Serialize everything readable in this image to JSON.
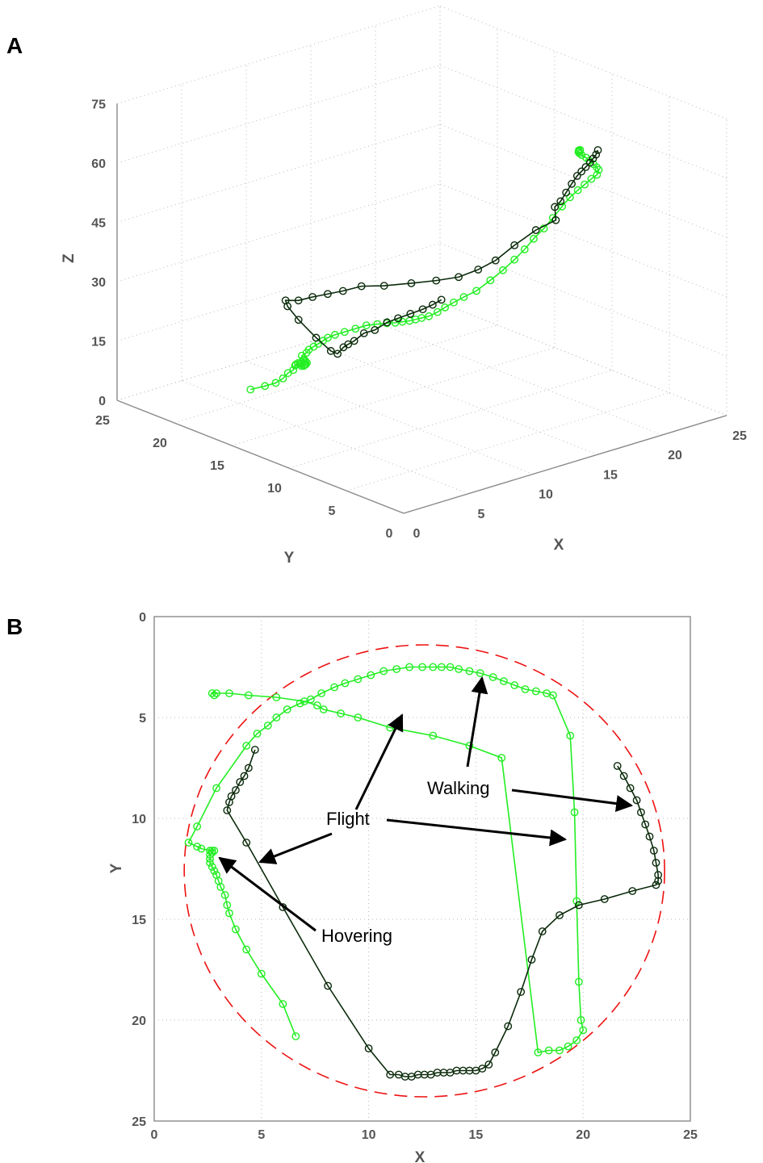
{
  "figure": {
    "panel_a_label": "A",
    "panel_b_label": "B",
    "colors": {
      "walking": "#0a2a0a",
      "flight": "#22ee22",
      "boundary": "#ee1111",
      "arrow": "#000000"
    }
  },
  "chart_data": [
    {
      "panel": "A",
      "type": "line",
      "projection": "3d",
      "xlabel": "X",
      "ylabel": "Y",
      "zlabel": "Z",
      "xlim": [
        0,
        25
      ],
      "ylim": [
        0,
        25
      ],
      "zlim": [
        0,
        75
      ],
      "xticks": [
        "0",
        "5",
        "10",
        "15",
        "20",
        "25"
      ],
      "yticks": [
        "0",
        "5",
        "10",
        "15",
        "20",
        "25"
      ],
      "zticks": [
        "0",
        "15",
        "30",
        "45",
        "60",
        "75"
      ],
      "grid": true,
      "series": [
        {
          "color": "#22ee22",
          "x": [
            6.6,
            6.3,
            5.8,
            5.3,
            4.8,
            4.5,
            4.2,
            3.9,
            3.7,
            3.5,
            3.3,
            3.1,
            3.0,
            2.9,
            2.8,
            2.8,
            2.7,
            2.6,
            2.5,
            2.5,
            2.6,
            2.6,
            2.7,
            2.8,
            2.9,
            3.0,
            3.2,
            3.5,
            3.9,
            4.3,
            4.7,
            5.0,
            5.2,
            5.4,
            5.6,
            5.8,
            6.0,
            6.3,
            6.7,
            7.1,
            7.6,
            8.2,
            9.0,
            9.9,
            10.7,
            11.5,
            12.2,
            12.9,
            13.6,
            14.3,
            15.1,
            15.8,
            16.5,
            17.2,
            17.9,
            18.6,
            19.0,
            19.2,
            19.4,
            19.6,
            19.8,
            19.9,
            20.0,
            20.1,
            20.2,
            20.3,
            20.4
          ],
          "y": [
            20.8,
            19.2,
            17.7,
            16.5,
            15.5,
            14.7,
            14.2,
            13.8,
            13.4,
            13.0,
            12.7,
            12.4,
            12.1,
            11.9,
            11.7,
            11.6,
            11.6,
            11.6,
            11.6,
            11.7,
            11.4,
            11.2,
            10.9,
            10.6,
            10.3,
            10.0,
            9.6,
            9.1,
            8.6,
            8.1,
            7.6,
            7.1,
            6.6,
            6.2,
            5.8,
            5.5,
            5.2,
            4.9,
            4.6,
            4.4,
            4.2,
            4.0,
            3.8,
            3.6,
            3.4,
            3.3,
            3.2,
            3.2,
            3.1,
            3.1,
            3.2,
            3.3,
            3.4,
            3.6,
            3.8,
            4.1,
            4.4,
            4.8,
            5.3,
            5.9,
            6.4,
            6.9,
            7.2,
            7.4,
            7.5,
            7.6,
            7.6
          ],
          "z": [
            1,
            4,
            7,
            10,
            13,
            15,
            17,
            18,
            19,
            19.5,
            20,
            20,
            20.5,
            21,
            21.5,
            22,
            22.5,
            23,
            23,
            24,
            25,
            26,
            27,
            28,
            29,
            30,
            31,
            32,
            33,
            34,
            34.5,
            35,
            35.5,
            36,
            36.5,
            37,
            37.5,
            38,
            39,
            40,
            41,
            42,
            43,
            45,
            47,
            49,
            51,
            53,
            55,
            57,
            59,
            60.5,
            61.5,
            62,
            62.5,
            62.5,
            63,
            63,
            63,
            63,
            63,
            63,
            63,
            63,
            63,
            63,
            63
          ]
        },
        {
          "color": "#0a2a0a",
          "x": [
            21.6,
            21.9,
            22.2,
            22.5,
            22.7,
            22.9,
            23.1,
            23.3,
            23.4,
            23.5,
            23.5,
            23.4,
            22.3,
            21.0,
            19.8,
            18.9,
            18.1,
            17.6,
            17.1,
            16.5,
            15.9,
            15.0,
            14.0,
            13.0,
            12.0,
            11.0,
            10.0,
            8.1,
            6.0,
            4.3,
            3.4,
            3.5,
            3.6,
            3.8,
            4.2,
            4.6,
            5.1,
            5.6,
            6.2,
            6.8,
            7.3,
            7.8
          ],
          "y": [
            7.4,
            7.9,
            8.5,
            9.1,
            9.7,
            10.3,
            10.9,
            11.6,
            12.2,
            12.8,
            13.3,
            13.1,
            13.6,
            14.0,
            14.3,
            14.8,
            15.6,
            17.0,
            18.6,
            20.3,
            21.6,
            22.2,
            22.4,
            22.6,
            22.7,
            22.7,
            21.4,
            18.3,
            14.4,
            11.2,
            9.6,
            9.2,
            8.9,
            8.6,
            8.2,
            7.7,
            7.2,
            6.8,
            6.4,
            6.0,
            5.7,
            5.5
          ],
          "z": [
            62,
            60,
            58,
            56,
            54,
            52,
            50,
            47,
            44,
            41,
            39,
            36,
            34,
            31,
            28,
            26,
            24,
            22,
            20,
            18,
            17,
            16,
            16,
            16,
            16,
            17,
            18,
            20,
            22,
            24,
            26,
            28,
            29,
            30,
            32,
            33,
            35,
            36,
            37,
            38,
            39,
            40
          ]
        }
      ]
    },
    {
      "panel": "B",
      "type": "line",
      "xlabel": "X",
      "ylabel": "Y",
      "xlim": [
        0,
        25
      ],
      "ylim": [
        0,
        25
      ],
      "y_reversed": true,
      "xticks": [
        "0",
        "5",
        "10",
        "15",
        "20",
        "25"
      ],
      "yticks": [
        "0",
        "5",
        "10",
        "15",
        "20",
        "25"
      ],
      "grid": true,
      "series": [
        {
          "color": "#22ee22",
          "x": [
            6.6,
            6.0,
            5.0,
            4.3,
            3.8,
            3.5,
            3.4,
            3.3,
            3.1,
            3.0,
            2.9,
            2.8,
            2.7,
            2.6,
            2.6,
            2.6,
            2.7,
            2.7,
            2.8,
            2.6,
            2.2,
            2.0,
            1.6,
            2.0,
            2.9,
            4.3,
            4.8,
            5.3,
            5.7,
            6.2,
            6.8,
            7.3,
            7.8,
            8.4,
            8.9,
            9.5,
            10.1,
            10.7,
            11.3,
            11.9,
            12.5,
            13.0,
            13.4,
            13.8,
            14.2,
            14.7,
            15.2,
            15.8,
            16.3,
            16.8,
            17.3,
            17.8,
            18.3,
            18.6,
            19.4,
            19.6,
            19.7,
            19.8,
            19.9,
            20.0,
            19.7,
            19.3,
            18.9,
            18.4,
            17.9,
            16.2,
            14.7,
            13.0,
            11.0,
            9.5,
            8.7,
            7.9,
            7.6,
            7.0,
            5.7,
            4.4,
            3.5,
            2.9,
            2.7,
            2.8
          ],
          "y": [
            20.8,
            19.2,
            17.7,
            16.5,
            15.5,
            14.7,
            14.3,
            13.8,
            13.4,
            13.1,
            12.8,
            12.6,
            12.4,
            12.2,
            12.0,
            11.8,
            11.7,
            11.6,
            11.6,
            11.6,
            11.5,
            11.4,
            11.2,
            10.4,
            8.5,
            6.4,
            5.8,
            5.4,
            5.0,
            4.6,
            4.3,
            4.1,
            3.8,
            3.5,
            3.3,
            3.1,
            2.9,
            2.7,
            2.6,
            2.5,
            2.5,
            2.5,
            2.5,
            2.5,
            2.6,
            2.7,
            2.8,
            3.0,
            3.2,
            3.4,
            3.6,
            3.7,
            3.8,
            3.9,
            5.9,
            9.7,
            14.1,
            18.1,
            20.0,
            20.5,
            21.0,
            21.3,
            21.5,
            21.5,
            21.6,
            7.0,
            6.4,
            5.9,
            5.5,
            5.0,
            4.8,
            4.6,
            4.4,
            4.2,
            4.0,
            3.9,
            3.8,
            3.8,
            3.8,
            3.9
          ],
          "segments": "panel B flight and hovering trajectory"
        },
        {
          "color": "#0a2a0a",
          "x": [
            21.6,
            21.9,
            22.2,
            22.5,
            22.7,
            22.9,
            23.1,
            23.3,
            23.4,
            23.5,
            23.5,
            23.4,
            22.3,
            21.0,
            19.8,
            18.9,
            18.1,
            17.6,
            17.1,
            16.5,
            15.9,
            15.6,
            15.3,
            15.0,
            14.7,
            14.4,
            14.1,
            13.8,
            13.5,
            13.2,
            12.9,
            12.6,
            12.3,
            12.0,
            11.7,
            11.4,
            11.0,
            10.0,
            8.1,
            6.0,
            4.3,
            3.4,
            3.5,
            3.6,
            3.8,
            4.0,
            4.2,
            4.4,
            4.7
          ],
          "y": [
            7.4,
            7.9,
            8.5,
            9.1,
            9.7,
            10.3,
            10.9,
            11.6,
            12.2,
            12.8,
            13.1,
            13.3,
            13.6,
            14.0,
            14.3,
            14.8,
            15.6,
            17.0,
            18.6,
            20.3,
            21.6,
            22.2,
            22.4,
            22.5,
            22.5,
            22.5,
            22.5,
            22.6,
            22.6,
            22.6,
            22.7,
            22.7,
            22.7,
            22.8,
            22.8,
            22.7,
            22.7,
            21.4,
            18.3,
            14.4,
            11.2,
            9.6,
            9.2,
            8.9,
            8.6,
            8.2,
            7.9,
            7.5,
            6.6
          ]
        }
      ],
      "boundary": {
        "shape": "circle",
        "cx": 12.6,
        "cy": 12.6,
        "r": 11.2,
        "style": "dashed"
      },
      "annotations": [
        {
          "text": "Walking"
        },
        {
          "text": "Flight"
        },
        {
          "text": "Hovering"
        }
      ]
    }
  ]
}
